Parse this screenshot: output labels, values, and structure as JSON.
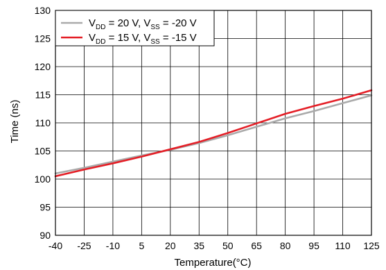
{
  "chart_data": {
    "type": "line",
    "title": "",
    "xlabel": "Temperature(°C)",
    "ylabel": "Time (ns)",
    "xlim": [
      -40,
      125
    ],
    "ylim": [
      90,
      130
    ],
    "xticks": [
      -40,
      -25,
      -10,
      5,
      20,
      35,
      50,
      65,
      80,
      95,
      110,
      125
    ],
    "yticks": [
      90,
      95,
      100,
      105,
      110,
      115,
      120,
      125,
      130
    ],
    "grid": true,
    "legend_position": "top-left",
    "series": [
      {
        "name": "V_DD = 20 V, V_SS = -20 V",
        "legend": {
          "a": "V",
          "a_sub": "DD",
          "b": " = 20 V, V",
          "b_sub": "SS",
          "c": " = -20 V"
        },
        "color": "#aaaaaa",
        "x": [
          -40,
          -25,
          -10,
          5,
          20,
          35,
          50,
          65,
          80,
          95,
          110,
          125
        ],
        "y": [
          101.0,
          102.0,
          103.1,
          104.2,
          105.2,
          106.4,
          107.8,
          109.3,
          110.8,
          112.1,
          113.5,
          114.9
        ]
      },
      {
        "name": "V_DD = 15 V, V_SS = -15 V",
        "legend": {
          "a": "V",
          "a_sub": "DD",
          "b": " = 15 V, V",
          "b_sub": "SS",
          "c": " = -15 V"
        },
        "color": "#e41e26",
        "x": [
          -40,
          -25,
          -10,
          5,
          20,
          35,
          50,
          65,
          80,
          95,
          110,
          125
        ],
        "y": [
          100.5,
          101.7,
          102.8,
          104.0,
          105.3,
          106.6,
          108.2,
          109.9,
          111.6,
          113.0,
          114.3,
          115.8
        ]
      }
    ]
  }
}
